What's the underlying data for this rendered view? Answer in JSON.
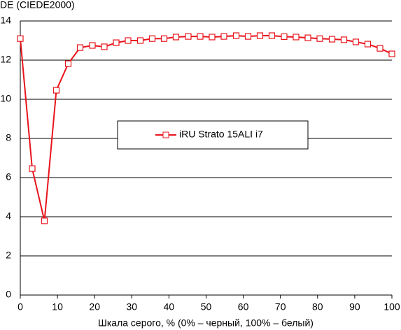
{
  "chart_data": {
    "type": "line",
    "y_label": "DE (CIEDE2000)",
    "x_label": "Шкала серого, % (0% – черный, 100% – белый)",
    "x": [
      0,
      3.2,
      6.5,
      9.7,
      12.9,
      16.1,
      19.4,
      22.6,
      25.8,
      29,
      32.3,
      35.5,
      38.7,
      41.9,
      45.2,
      48.4,
      51.6,
      54.8,
      58.1,
      61.3,
      64.5,
      67.7,
      71,
      74.2,
      77.4,
      80.6,
      83.9,
      87.1,
      90.3,
      93.5,
      96.8,
      100
    ],
    "series": [
      {
        "name": "iRU Strato 15ALI i7",
        "color": "#e8141c",
        "values": [
          13.1,
          6.46,
          3.79,
          10.46,
          11.82,
          12.64,
          12.75,
          12.68,
          12.89,
          13.0,
          13.0,
          13.1,
          13.1,
          13.18,
          13.21,
          13.21,
          13.18,
          13.21,
          13.25,
          13.21,
          13.25,
          13.25,
          13.2,
          13.18,
          13.14,
          13.1,
          13.07,
          13.04,
          12.93,
          12.82,
          12.6,
          12.32
        ]
      }
    ],
    "xlim": [
      0,
      100
    ],
    "xticks": [
      0,
      10,
      20,
      30,
      40,
      50,
      60,
      70,
      80,
      90,
      100
    ],
    "ylim": [
      0,
      14
    ],
    "yticks": [
      0,
      2,
      4,
      6,
      8,
      10,
      12,
      14
    ],
    "grid": true
  }
}
